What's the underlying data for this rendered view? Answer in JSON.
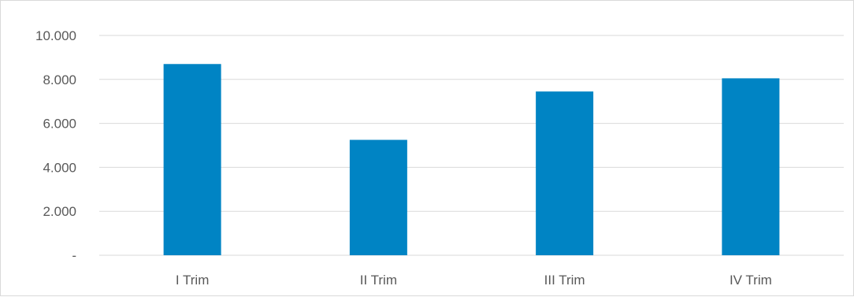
{
  "chart_data": {
    "type": "bar",
    "categories": [
      "I Trim",
      "II Trim",
      "III Trim",
      "IV Trim"
    ],
    "values": [
      8700,
      5250,
      7450,
      8050
    ],
    "yticks": [
      0,
      2000,
      4000,
      6000,
      8000,
      10000
    ],
    "ytick_labels": [
      "-",
      "2.000",
      "4.000",
      "6.000",
      "8.000",
      "10.000"
    ],
    "ylim": [
      0,
      10000
    ],
    "title": "",
    "xlabel": "",
    "ylabel": "",
    "grid": true,
    "legend": "none",
    "bar_color": "#0084C4"
  }
}
